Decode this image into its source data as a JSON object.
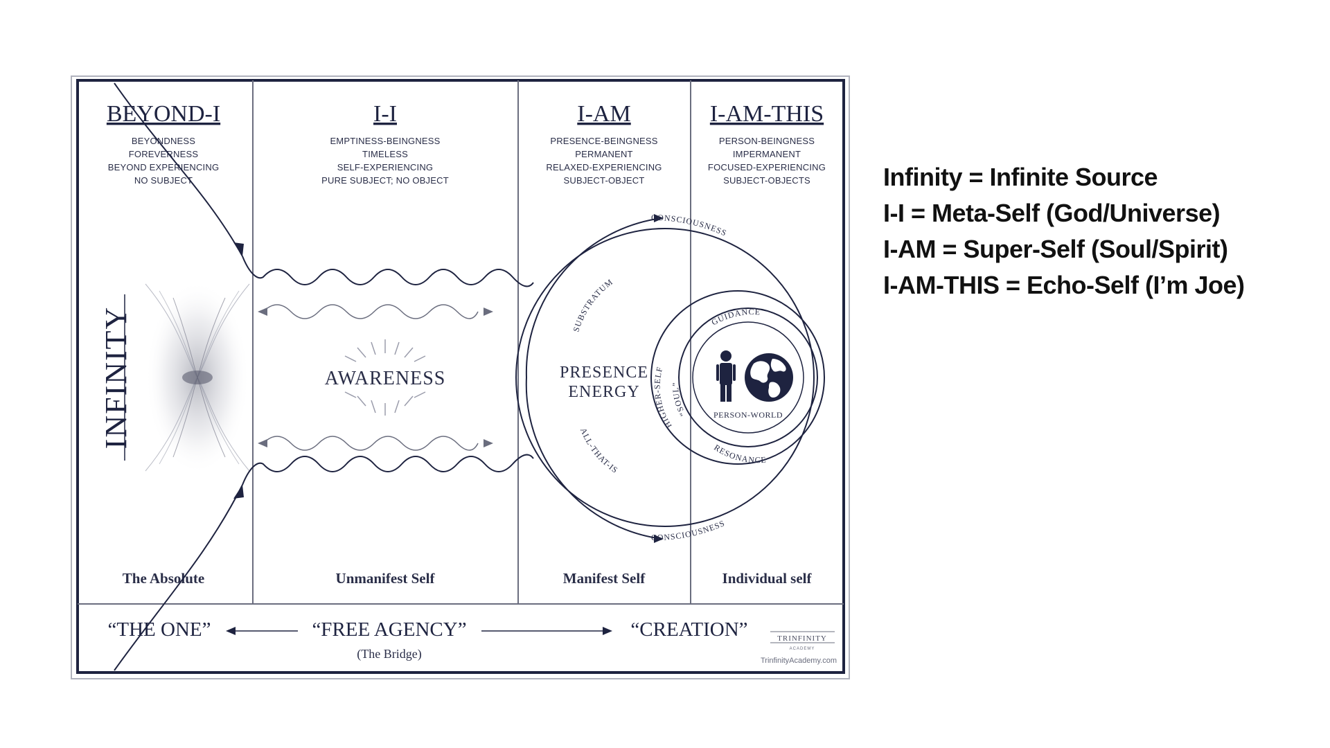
{
  "columns": [
    {
      "title": "BEYOND-I",
      "lines": [
        "BEYONDNESS",
        "FOREVERNESS",
        "BEYOND EXPERIENCING",
        "NO SUBJECT"
      ],
      "footer": "The Absolute"
    },
    {
      "title": "I-I",
      "lines": [
        "EMPTINESS-BEINGNESS",
        "TIMELESS",
        "SELF-EXPERIENCING",
        "PURE SUBJECT; NO OBJECT"
      ],
      "footer": "Unmanifest Self"
    },
    {
      "title": "I-AM",
      "lines": [
        "PRESENCE-BEINGNESS",
        "PERMANENT",
        "RELAXED-EXPERIENCING",
        "SUBJECT-OBJECT"
      ],
      "footer": "Manifest Self"
    },
    {
      "title": "I-AM-THIS",
      "lines": [
        "PERSON-BEINGNESS",
        "IMPERMANENT",
        "FOCUSED-EXPERIENCING",
        "SUBJECT-OBJECTS"
      ],
      "footer": "Individual self"
    }
  ],
  "infinity_label": "INFINITY",
  "awareness_label": "AWARENESS",
  "presence_energy": [
    "PRESENCE",
    "ENERGY"
  ],
  "arc_labels": {
    "consciousness_top": "CONSCIOUSNESS",
    "consciousness_bottom": "CONSCIOUSNESS",
    "substratum": "SUBSTRATUM",
    "all_that_is": "ALL-THAT-IS",
    "higher_self": "HIGHER-SELF",
    "soul": "“SOUL”",
    "guidance": "GUIDANCE",
    "resonance": "RESONANCE",
    "person_world": "PERSON-WORLD"
  },
  "bridge": {
    "the_one": "“THE ONE”",
    "free_agency": "“FREE AGENCY”",
    "the_bridge": "(The Bridge)",
    "creation": "“CREATION”"
  },
  "logo": {
    "name": "TRINFINITY",
    "tag": "ACADEMY",
    "website": "TrinfinityAcademy.com"
  },
  "legend": [
    "Infinity = Infinite Source",
    "I-I = Meta-Self (God/Universe)",
    "I-AM = Super-Self (Soul/Spirit)",
    "I-AM-THIS = Echo-Self (I’m Joe)"
  ],
  "colors": {
    "ink": "#1e2340",
    "line": "#6a6d7e",
    "frame": "#1e2340"
  }
}
